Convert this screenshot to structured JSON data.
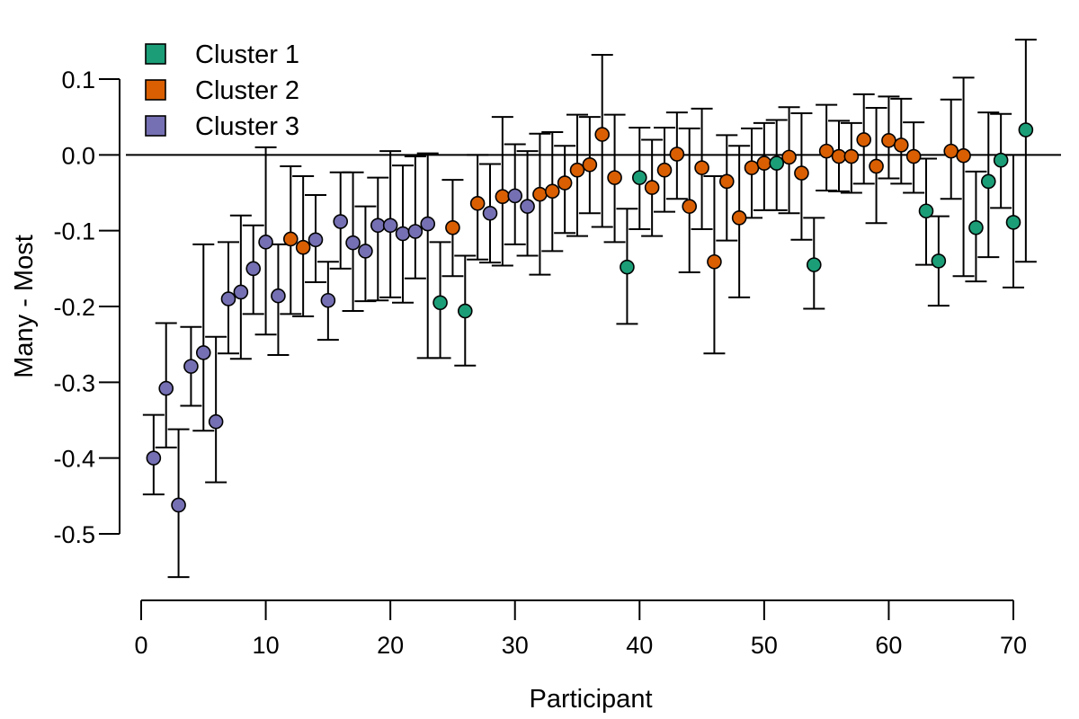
{
  "chart_data": {
    "type": "scatter",
    "title": "",
    "xlabel": "Participant",
    "ylabel": "Many - Most",
    "xlim": [
      0,
      70
    ],
    "ylim": [
      -0.5,
      0.1
    ],
    "xticks": [
      0,
      10,
      20,
      30,
      40,
      50,
      60,
      70
    ],
    "xtick_labels": [
      "0",
      "10",
      "20",
      "30",
      "40",
      "50",
      "60",
      "70"
    ],
    "yticks": [
      0.1,
      0.0,
      -0.1,
      -0.2,
      -0.3,
      -0.4,
      -0.5
    ],
    "ytick_labels": [
      "0.1",
      "0.0",
      "-0.1",
      "-0.2",
      "-0.3",
      "-0.4",
      "-0.5"
    ],
    "reference_line_y": 0,
    "grid": false,
    "legend_position": "top-left",
    "clusters": [
      {
        "name": "Cluster 1",
        "color": "#1b9e77"
      },
      {
        "name": "Cluster 2",
        "color": "#d95f02"
      },
      {
        "name": "Cluster 3",
        "color": "#7570b3"
      }
    ],
    "points": [
      {
        "x": 1,
        "y": -0.4,
        "lo": -0.448,
        "hi": -0.343,
        "cluster": 3
      },
      {
        "x": 2,
        "y": -0.308,
        "lo": -0.386,
        "hi": -0.222,
        "cluster": 3
      },
      {
        "x": 3,
        "y": -0.462,
        "lo": -0.557,
        "hi": -0.362,
        "cluster": 3
      },
      {
        "x": 4,
        "y": -0.279,
        "lo": -0.331,
        "hi": -0.227,
        "cluster": 3
      },
      {
        "x": 5,
        "y": -0.261,
        "lo": -0.364,
        "hi": -0.118,
        "cluster": 3
      },
      {
        "x": 6,
        "y": -0.352,
        "lo": -0.432,
        "hi": -0.24,
        "cluster": 3
      },
      {
        "x": 7,
        "y": -0.19,
        "lo": -0.262,
        "hi": -0.115,
        "cluster": 3
      },
      {
        "x": 8,
        "y": -0.181,
        "lo": -0.269,
        "hi": -0.08,
        "cluster": 3
      },
      {
        "x": 9,
        "y": -0.15,
        "lo": -0.21,
        "hi": -0.093,
        "cluster": 3
      },
      {
        "x": 10,
        "y": -0.115,
        "lo": -0.237,
        "hi": 0.01,
        "cluster": 3
      },
      {
        "x": 11,
        "y": -0.186,
        "lo": -0.264,
        "hi": -0.118,
        "cluster": 3
      },
      {
        "x": 12,
        "y": -0.111,
        "lo": -0.21,
        "hi": -0.015,
        "cluster": 2
      },
      {
        "x": 13,
        "y": -0.122,
        "lo": -0.213,
        "hi": -0.028,
        "cluster": 2
      },
      {
        "x": 14,
        "y": -0.112,
        "lo": -0.168,
        "hi": -0.053,
        "cluster": 3
      },
      {
        "x": 15,
        "y": -0.192,
        "lo": -0.244,
        "hi": -0.141,
        "cluster": 3
      },
      {
        "x": 16,
        "y": -0.088,
        "lo": -0.15,
        "hi": -0.023,
        "cluster": 3
      },
      {
        "x": 17,
        "y": -0.116,
        "lo": -0.206,
        "hi": -0.023,
        "cluster": 3
      },
      {
        "x": 18,
        "y": -0.127,
        "lo": -0.193,
        "hi": -0.068,
        "cluster": 3
      },
      {
        "x": 19,
        "y": -0.093,
        "lo": -0.192,
        "hi": -0.03,
        "cluster": 3
      },
      {
        "x": 20,
        "y": -0.093,
        "lo": -0.188,
        "hi": 0.005,
        "cluster": 3
      },
      {
        "x": 21,
        "y": -0.104,
        "lo": -0.195,
        "hi": -0.014,
        "cluster": 3
      },
      {
        "x": 22,
        "y": -0.101,
        "lo": -0.163,
        "hi": -0.002,
        "cluster": 3
      },
      {
        "x": 23,
        "y": -0.091,
        "lo": -0.268,
        "hi": 0.002,
        "cluster": 3
      },
      {
        "x": 24,
        "y": -0.195,
        "lo": -0.268,
        "hi": -0.115,
        "cluster": 1
      },
      {
        "x": 25,
        "y": -0.096,
        "lo": -0.16,
        "hi": -0.033,
        "cluster": 2
      },
      {
        "x": 26,
        "y": -0.206,
        "lo": -0.278,
        "hi": -0.133,
        "cluster": 1
      },
      {
        "x": 27,
        "y": -0.064,
        "lo": -0.138,
        "hi": 0.0,
        "cluster": 2
      },
      {
        "x": 28,
        "y": -0.077,
        "lo": -0.142,
        "hi": -0.012,
        "cluster": 3
      },
      {
        "x": 29,
        "y": -0.055,
        "lo": -0.146,
        "hi": 0.05,
        "cluster": 2
      },
      {
        "x": 30,
        "y": -0.054,
        "lo": -0.118,
        "hi": 0.014,
        "cluster": 3
      },
      {
        "x": 31,
        "y": -0.068,
        "lo": -0.133,
        "hi": 0.005,
        "cluster": 3
      },
      {
        "x": 32,
        "y": -0.052,
        "lo": -0.158,
        "hi": 0.028,
        "cluster": 2
      },
      {
        "x": 33,
        "y": -0.048,
        "lo": -0.127,
        "hi": 0.03,
        "cluster": 2
      },
      {
        "x": 34,
        "y": -0.037,
        "lo": -0.103,
        "hi": 0.012,
        "cluster": 2
      },
      {
        "x": 35,
        "y": -0.02,
        "lo": -0.107,
        "hi": 0.053,
        "cluster": 2
      },
      {
        "x": 36,
        "y": -0.013,
        "lo": -0.077,
        "hi": 0.05,
        "cluster": 2
      },
      {
        "x": 37,
        "y": 0.027,
        "lo": -0.095,
        "hi": 0.132,
        "cluster": 2
      },
      {
        "x": 38,
        "y": -0.03,
        "lo": -0.115,
        "hi": 0.053,
        "cluster": 2
      },
      {
        "x": 39,
        "y": -0.148,
        "lo": -0.223,
        "hi": -0.071,
        "cluster": 1
      },
      {
        "x": 40,
        "y": -0.03,
        "lo": -0.098,
        "hi": 0.036,
        "cluster": 1
      },
      {
        "x": 41,
        "y": -0.043,
        "lo": -0.107,
        "hi": 0.02,
        "cluster": 2
      },
      {
        "x": 42,
        "y": -0.02,
        "lo": -0.075,
        "hi": 0.036,
        "cluster": 2
      },
      {
        "x": 43,
        "y": 0.001,
        "lo": -0.058,
        "hi": 0.056,
        "cluster": 2
      },
      {
        "x": 44,
        "y": -0.068,
        "lo": -0.155,
        "hi": 0.035,
        "cluster": 2
      },
      {
        "x": 45,
        "y": -0.017,
        "lo": -0.098,
        "hi": 0.061,
        "cluster": 2
      },
      {
        "x": 46,
        "y": -0.141,
        "lo": -0.262,
        "hi": -0.028,
        "cluster": 2
      },
      {
        "x": 47,
        "y": -0.035,
        "lo": -0.113,
        "hi": 0.026,
        "cluster": 2
      },
      {
        "x": 48,
        "y": -0.083,
        "lo": -0.188,
        "hi": 0.012,
        "cluster": 2
      },
      {
        "x": 49,
        "y": -0.017,
        "lo": -0.083,
        "hi": 0.035,
        "cluster": 2
      },
      {
        "x": 50,
        "y": -0.011,
        "lo": -0.073,
        "hi": 0.042,
        "cluster": 2
      },
      {
        "x": 51,
        "y": -0.011,
        "lo": -0.073,
        "hi": 0.046,
        "cluster": 1
      },
      {
        "x": 52,
        "y": -0.003,
        "lo": -0.077,
        "hi": 0.063,
        "cluster": 2
      },
      {
        "x": 53,
        "y": -0.024,
        "lo": -0.112,
        "hi": 0.055,
        "cluster": 2
      },
      {
        "x": 54,
        "y": -0.145,
        "lo": -0.203,
        "hi": -0.083,
        "cluster": 1
      },
      {
        "x": 55,
        "y": 0.005,
        "lo": -0.047,
        "hi": 0.066,
        "cluster": 2
      },
      {
        "x": 56,
        "y": -0.002,
        "lo": -0.048,
        "hi": 0.045,
        "cluster": 2
      },
      {
        "x": 57,
        "y": -0.002,
        "lo": -0.05,
        "hi": 0.042,
        "cluster": 2
      },
      {
        "x": 58,
        "y": 0.02,
        "lo": -0.038,
        "hi": 0.08,
        "cluster": 2
      },
      {
        "x": 59,
        "y": -0.015,
        "lo": -0.09,
        "hi": 0.062,
        "cluster": 2
      },
      {
        "x": 60,
        "y": 0.019,
        "lo": -0.031,
        "hi": 0.077,
        "cluster": 2
      },
      {
        "x": 61,
        "y": 0.013,
        "lo": -0.038,
        "hi": 0.074,
        "cluster": 2
      },
      {
        "x": 62,
        "y": -0.002,
        "lo": -0.05,
        "hi": 0.043,
        "cluster": 2
      },
      {
        "x": 63,
        "y": -0.074,
        "lo": -0.145,
        "hi": -0.005,
        "cluster": 1
      },
      {
        "x": 64,
        "y": -0.14,
        "lo": -0.199,
        "hi": -0.081,
        "cluster": 1
      },
      {
        "x": 65,
        "y": 0.005,
        "lo": -0.058,
        "hi": 0.073,
        "cluster": 2
      },
      {
        "x": 66,
        "y": -0.001,
        "lo": -0.16,
        "hi": 0.102,
        "cluster": 2
      },
      {
        "x": 67,
        "y": -0.096,
        "lo": -0.167,
        "hi": -0.022,
        "cluster": 1
      },
      {
        "x": 68,
        "y": -0.035,
        "lo": -0.135,
        "hi": 0.056,
        "cluster": 1
      },
      {
        "x": 69,
        "y": -0.007,
        "lo": -0.07,
        "hi": 0.054,
        "cluster": 1
      },
      {
        "x": 70,
        "y": -0.089,
        "lo": -0.175,
        "hi": 0.0,
        "cluster": 1
      },
      {
        "x": 71,
        "y": 0.033,
        "lo": -0.141,
        "hi": 0.152,
        "cluster": 1
      }
    ]
  }
}
